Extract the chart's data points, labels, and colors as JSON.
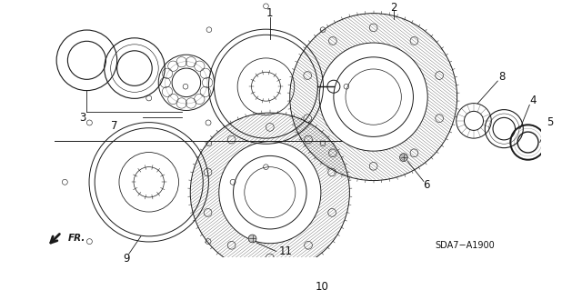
{
  "part_number": "SDA7−A1900",
  "background_color": "#ffffff",
  "line_color": "#1a1a1a",
  "label_color": "#111111",
  "figsize": [
    6.4,
    3.19
  ],
  "dpi": 100
}
